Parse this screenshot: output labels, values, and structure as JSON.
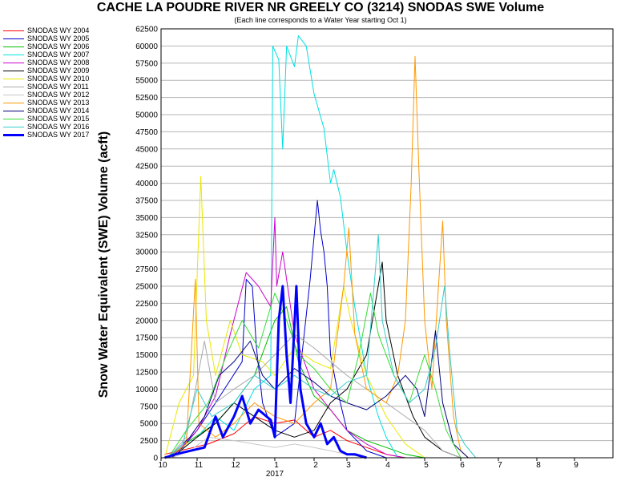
{
  "chart_data": {
    "type": "line",
    "title": "CACHE LA POUDRE RIVER NR GREELY CO (3214) SNODAS SWE Volume",
    "subtitle": "(Each line corresponds to a Water Year starting Oct 1)",
    "ylabel": "Snow Water Equivalent (SWE) Volume (acft)",
    "xlabel": "",
    "year_label": "2017",
    "ylim": [
      0,
      62500
    ],
    "y_ticks": [
      0,
      2500,
      5000,
      7500,
      10000,
      12500,
      15000,
      17500,
      20000,
      22500,
      25000,
      27500,
      30000,
      32500,
      35000,
      37500,
      40000,
      42500,
      45000,
      47500,
      50000,
      52500,
      55000,
      57500,
      60000,
      62500
    ],
    "x_ticks": [
      {
        "label": "10",
        "month": 0
      },
      {
        "label": "11",
        "month": 1
      },
      {
        "label": "12",
        "month": 2
      },
      {
        "label": "1",
        "month": 3
      },
      {
        "label": "2",
        "month": 4
      },
      {
        "label": "3",
        "month": 5
      },
      {
        "label": "4",
        "month": 6
      },
      {
        "label": "5",
        "month": 7
      },
      {
        "label": "6",
        "month": 8
      },
      {
        "label": "7",
        "month": 9
      },
      {
        "label": "8",
        "month": 10
      },
      {
        "label": "9",
        "month": 11
      }
    ],
    "xlim_months": [
      0,
      12
    ],
    "grid": true,
    "legend_position": "left",
    "series": [
      {
        "name": "SNODAS WY 2004",
        "color": "#ff0000",
        "width": 1,
        "points": [
          [
            0.1,
            500
          ],
          [
            0.9,
            1500
          ],
          [
            1.3,
            2000
          ],
          [
            2.0,
            3500
          ],
          [
            2.5,
            6000
          ],
          [
            3.0,
            5000
          ],
          [
            3.5,
            5500
          ],
          [
            4.0,
            3000
          ],
          [
            4.5,
            4000
          ],
          [
            5.0,
            2500
          ],
          [
            5.5,
            1500
          ],
          [
            6.0,
            500
          ],
          [
            6.5,
            0
          ]
        ]
      },
      {
        "name": "SNODAS WY 2005",
        "color": "#0000cc",
        "width": 1,
        "points": [
          [
            0.2,
            0
          ],
          [
            0.6,
            1500
          ],
          [
            1.0,
            4000
          ],
          [
            1.5,
            8000
          ],
          [
            2.2,
            14000
          ],
          [
            2.3,
            26000
          ],
          [
            2.45,
            25000
          ],
          [
            2.55,
            16000
          ],
          [
            2.7,
            8000
          ],
          [
            3.0,
            3000
          ],
          [
            3.5,
            5000
          ],
          [
            3.9,
            26000
          ],
          [
            4.1,
            37500
          ],
          [
            4.2,
            33000
          ],
          [
            4.3,
            30000
          ],
          [
            4.4,
            25000
          ],
          [
            4.5,
            15000
          ],
          [
            4.7,
            10000
          ],
          [
            5.0,
            4000
          ],
          [
            5.5,
            1000
          ],
          [
            6.0,
            0
          ]
        ]
      },
      {
        "name": "SNODAS WY 2006",
        "color": "#00bb00",
        "width": 1,
        "points": [
          [
            0.2,
            0
          ],
          [
            0.8,
            2500
          ],
          [
            1.5,
            5000
          ],
          [
            2.0,
            8000
          ],
          [
            2.5,
            12000
          ],
          [
            3.0,
            20000
          ],
          [
            3.3,
            22000
          ],
          [
            3.6,
            14000
          ],
          [
            4.0,
            9000
          ],
          [
            4.5,
            7000
          ],
          [
            5.0,
            4000
          ],
          [
            5.5,
            2500
          ],
          [
            6.0,
            1500
          ],
          [
            6.5,
            500
          ],
          [
            7.0,
            0
          ]
        ]
      },
      {
        "name": "SNODAS WY 2007",
        "color": "#00e0e0",
        "width": 1,
        "points": [
          [
            0.3,
            0
          ],
          [
            1.0,
            3000
          ],
          [
            1.5,
            6000
          ],
          [
            2.0,
            4000
          ],
          [
            2.5,
            10000
          ],
          [
            2.9,
            12000
          ],
          [
            2.95,
            60000
          ],
          [
            3.1,
            58000
          ],
          [
            3.2,
            45000
          ],
          [
            3.3,
            60000
          ],
          [
            3.5,
            57000
          ],
          [
            3.6,
            61500
          ],
          [
            3.8,
            60000
          ],
          [
            4.0,
            53000
          ],
          [
            4.3,
            48000
          ],
          [
            4.5,
            40000
          ],
          [
            4.6,
            42000
          ],
          [
            4.8,
            38000
          ],
          [
            5.0,
            30000
          ],
          [
            5.2,
            22000
          ],
          [
            5.5,
            12000
          ],
          [
            5.8,
            6000
          ],
          [
            6.0,
            3000
          ],
          [
            6.3,
            0
          ]
        ]
      },
      {
        "name": "SNODAS WY 2008",
        "color": "#cc00cc",
        "width": 1,
        "points": [
          [
            0.3,
            0
          ],
          [
            1.0,
            4000
          ],
          [
            1.5,
            9000
          ],
          [
            1.9,
            18000
          ],
          [
            2.3,
            27000
          ],
          [
            2.6,
            25000
          ],
          [
            2.9,
            22000
          ],
          [
            3.0,
            35000
          ],
          [
            3.05,
            25000
          ],
          [
            3.2,
            30000
          ],
          [
            3.5,
            18000
          ],
          [
            4.0,
            10000
          ],
          [
            4.5,
            7000
          ],
          [
            5.0,
            4000
          ],
          [
            5.5,
            2000
          ],
          [
            6.0,
            500
          ],
          [
            6.5,
            0
          ]
        ]
      },
      {
        "name": "SNODAS WY 2009",
        "color": "#000000",
        "width": 1,
        "points": [
          [
            0.3,
            0
          ],
          [
            1.0,
            3000
          ],
          [
            1.5,
            5000
          ],
          [
            2.0,
            8000
          ],
          [
            2.5,
            6000
          ],
          [
            3.0,
            4000
          ],
          [
            3.5,
            3000
          ],
          [
            4.0,
            4000
          ],
          [
            4.5,
            8000
          ],
          [
            5.0,
            10000
          ],
          [
            5.5,
            15000
          ],
          [
            5.9,
            28500
          ],
          [
            6.0,
            20000
          ],
          [
            6.3,
            12000
          ],
          [
            6.7,
            6000
          ],
          [
            7.0,
            3000
          ],
          [
            7.5,
            1000
          ],
          [
            8.0,
            0
          ]
        ]
      },
      {
        "name": "SNODAS WY 2010",
        "color": "#e8e800",
        "width": 1,
        "points": [
          [
            0.1,
            0
          ],
          [
            0.5,
            8000
          ],
          [
            0.9,
            12000
          ],
          [
            1.1,
            41000
          ],
          [
            1.25,
            20000
          ],
          [
            1.5,
            12000
          ],
          [
            1.9,
            20000
          ],
          [
            2.2,
            15000
          ],
          [
            2.7,
            14000
          ],
          [
            3.0,
            12000
          ],
          [
            3.5,
            16000
          ],
          [
            4.0,
            14000
          ],
          [
            4.5,
            13000
          ],
          [
            4.9,
            25000
          ],
          [
            5.1,
            20000
          ],
          [
            5.5,
            12000
          ],
          [
            6.0,
            6000
          ],
          [
            6.5,
            2000
          ],
          [
            7.0,
            0
          ]
        ]
      },
      {
        "name": "SNODAS WY 2011",
        "color": "#aaaaaa",
        "width": 1,
        "points": [
          [
            0.2,
            0
          ],
          [
            0.7,
            3000
          ],
          [
            1.2,
            17000
          ],
          [
            1.5,
            8000
          ],
          [
            2.0,
            10000
          ],
          [
            2.5,
            12000
          ],
          [
            3.0,
            15000
          ],
          [
            3.5,
            18000
          ],
          [
            4.0,
            16000
          ],
          [
            4.5,
            14000
          ],
          [
            5.0,
            12000
          ],
          [
            5.5,
            10000
          ],
          [
            6.0,
            8000
          ],
          [
            6.5,
            6000
          ],
          [
            7.0,
            4000
          ],
          [
            7.5,
            1000
          ],
          [
            8.0,
            0
          ]
        ]
      },
      {
        "name": "SNODAS WY 2012",
        "color": "#c8c8c8",
        "width": 1,
        "points": [
          [
            0.3,
            0
          ],
          [
            0.8,
            1000
          ],
          [
            1.3,
            3000
          ],
          [
            2.0,
            2500
          ],
          [
            2.5,
            2000
          ],
          [
            3.0,
            1500
          ],
          [
            3.5,
            2000
          ],
          [
            4.0,
            1500
          ],
          [
            4.5,
            1000
          ],
          [
            5.0,
            500
          ],
          [
            5.5,
            0
          ]
        ]
      },
      {
        "name": "SNODAS WY 2013",
        "color": "#ff9900",
        "width": 1,
        "points": [
          [
            0.2,
            0
          ],
          [
            0.7,
            2000
          ],
          [
            0.95,
            26000
          ],
          [
            1.05,
            5000
          ],
          [
            1.5,
            3000
          ],
          [
            2.0,
            5000
          ],
          [
            2.5,
            8000
          ],
          [
            3.0,
            6000
          ],
          [
            3.5,
            5000
          ],
          [
            4.0,
            8000
          ],
          [
            4.5,
            10000
          ],
          [
            4.9,
            25000
          ],
          [
            5.05,
            33500
          ],
          [
            5.2,
            18000
          ],
          [
            5.5,
            10000
          ],
          [
            6.0,
            8000
          ],
          [
            6.3,
            12000
          ],
          [
            6.5,
            20000
          ],
          [
            6.65,
            40000
          ],
          [
            6.75,
            58500
          ],
          [
            6.85,
            42000
          ],
          [
            7.0,
            20000
          ],
          [
            7.2,
            10000
          ],
          [
            7.5,
            34500
          ],
          [
            7.6,
            20000
          ],
          [
            7.8,
            6000
          ],
          [
            8.0,
            1000
          ],
          [
            8.2,
            0
          ]
        ]
      },
      {
        "name": "SNODAS WY 2014",
        "color": "#000080",
        "width": 1,
        "points": [
          [
            0.2,
            0
          ],
          [
            0.8,
            3000
          ],
          [
            1.2,
            6000
          ],
          [
            1.6,
            12000
          ],
          [
            2.0,
            14000
          ],
          [
            2.4,
            17000
          ],
          [
            2.7,
            12000
          ],
          [
            3.0,
            10000
          ],
          [
            3.5,
            13000
          ],
          [
            4.0,
            11000
          ],
          [
            4.5,
            9000
          ],
          [
            5.0,
            8000
          ],
          [
            5.5,
            7000
          ],
          [
            6.0,
            9000
          ],
          [
            6.5,
            12000
          ],
          [
            6.8,
            10000
          ],
          [
            7.0,
            6000
          ],
          [
            7.3,
            18500
          ],
          [
            7.5,
            8000
          ],
          [
            7.8,
            2000
          ],
          [
            8.2,
            0
          ]
        ]
      },
      {
        "name": "SNODAS WY 2015",
        "color": "#33dd33",
        "width": 1,
        "points": [
          [
            0.2,
            0
          ],
          [
            0.7,
            4000
          ],
          [
            1.3,
            8000
          ],
          [
            1.8,
            15000
          ],
          [
            2.2,
            20000
          ],
          [
            2.6,
            16000
          ],
          [
            3.0,
            24000
          ],
          [
            3.3,
            20000
          ],
          [
            3.6,
            15000
          ],
          [
            4.0,
            13000
          ],
          [
            4.5,
            10000
          ],
          [
            5.0,
            8000
          ],
          [
            5.3,
            15000
          ],
          [
            5.6,
            24000
          ],
          [
            5.8,
            18000
          ],
          [
            6.2,
            12000
          ],
          [
            6.6,
            8000
          ],
          [
            7.0,
            15000
          ],
          [
            7.3,
            10000
          ],
          [
            7.6,
            4000
          ],
          [
            8.0,
            0
          ]
        ]
      },
      {
        "name": "SNODAS WY 2016",
        "color": "#33cccc",
        "width": 1,
        "points": [
          [
            0.2,
            0
          ],
          [
            0.6,
            2000
          ],
          [
            1.0,
            10000
          ],
          [
            1.4,
            6000
          ],
          [
            2.0,
            8000
          ],
          [
            2.5,
            12000
          ],
          [
            3.0,
            10000
          ],
          [
            3.5,
            12000
          ],
          [
            4.0,
            10000
          ],
          [
            4.5,
            9000
          ],
          [
            5.0,
            11000
          ],
          [
            5.5,
            12000
          ],
          [
            5.8,
            32500
          ],
          [
            5.9,
            20000
          ],
          [
            6.2,
            12000
          ],
          [
            6.6,
            8000
          ],
          [
            7.0,
            10000
          ],
          [
            7.3,
            16000
          ],
          [
            7.55,
            25000
          ],
          [
            7.7,
            15000
          ],
          [
            7.9,
            4000
          ],
          [
            8.1,
            2000
          ],
          [
            8.4,
            0
          ]
        ]
      },
      {
        "name": "SNODAS WY 2017",
        "color": "#0000ff",
        "width": 3,
        "points": [
          [
            0.1,
            0
          ],
          [
            0.4,
            500
          ],
          [
            0.8,
            1000
          ],
          [
            1.2,
            1500
          ],
          [
            1.5,
            6000
          ],
          [
            1.7,
            3000
          ],
          [
            2.0,
            6000
          ],
          [
            2.2,
            9000
          ],
          [
            2.4,
            5000
          ],
          [
            2.6,
            7000
          ],
          [
            2.9,
            5500
          ],
          [
            3.0,
            3000
          ],
          [
            3.1,
            20000
          ],
          [
            3.2,
            25000
          ],
          [
            3.3,
            15000
          ],
          [
            3.4,
            8000
          ],
          [
            3.55,
            25000
          ],
          [
            3.65,
            10000
          ],
          [
            3.8,
            5000
          ],
          [
            4.0,
            3000
          ],
          [
            4.2,
            5000
          ],
          [
            4.4,
            2000
          ],
          [
            4.6,
            3000
          ],
          [
            4.8,
            1000
          ],
          [
            5.0,
            500
          ],
          [
            5.2,
            500
          ],
          [
            5.5,
            0
          ]
        ]
      }
    ]
  }
}
